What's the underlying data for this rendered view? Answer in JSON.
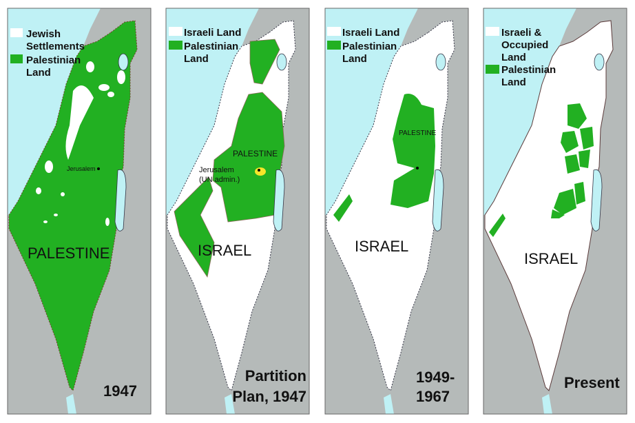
{
  "colors": {
    "sea": "#bff1f5",
    "neighbor_land": "#b5bab9",
    "palestinian": "#22b022",
    "israeli": "#ffffff",
    "un_admin": "#f5e52a"
  },
  "panels": [
    {
      "legend": [
        {
          "swatch": "white",
          "lines": [
            "Jewish",
            "Settlements"
          ]
        },
        {
          "swatch": "green",
          "lines": [
            "Palestinian",
            "Land"
          ]
        }
      ],
      "labels": {
        "main": "PALESTINE",
        "city": "Jerusalem"
      },
      "caption": [
        "1947"
      ]
    },
    {
      "legend": [
        {
          "swatch": "white",
          "lines": [
            "Israeli Land"
          ]
        },
        {
          "swatch": "green",
          "lines": [
            "Palestinian",
            "Land"
          ]
        }
      ],
      "labels": {
        "main": "ISRAEL",
        "region": "PALESTINE",
        "city": "Jerusalem",
        "city_note": "(UN admin.)"
      },
      "caption": [
        "Partition",
        "Plan, 1947"
      ]
    },
    {
      "legend": [
        {
          "swatch": "white",
          "lines": [
            "Israeli Land"
          ]
        },
        {
          "swatch": "green",
          "lines": [
            "Palestinian",
            "Land"
          ]
        }
      ],
      "labels": {
        "main": "ISRAEL",
        "region": "PALESTINE"
      },
      "caption": [
        "1949-",
        "1967"
      ]
    },
    {
      "legend": [
        {
          "swatch": "white",
          "lines": [
            "Israeli &",
            "Occupied",
            "Land"
          ]
        },
        {
          "swatch": "green",
          "lines": [
            "Palestinian",
            "Land"
          ]
        }
      ],
      "labels": {
        "main": "ISRAEL"
      },
      "caption": [
        "Present"
      ]
    }
  ]
}
